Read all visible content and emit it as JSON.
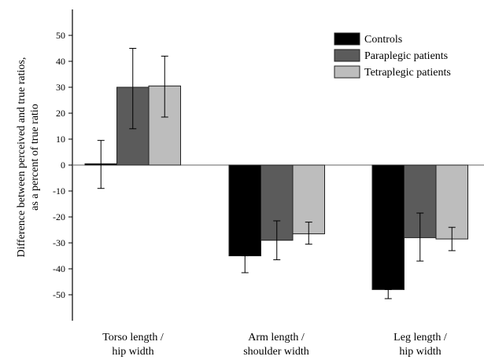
{
  "chart_data": {
    "type": "bar",
    "ylabel_lines": [
      "Difference between perceived and true ratios,",
      "as a percent of true ratio"
    ],
    "ylim": [
      -60,
      60
    ],
    "yticks": [
      50,
      40,
      30,
      20,
      10,
      0,
      -10,
      -20,
      -30,
      -40,
      -50
    ],
    "categories": [
      [
        "Torso length /",
        "hip width"
      ],
      [
        "Arm length /",
        "shoulder width"
      ],
      [
        "Leg length /",
        "hip width"
      ]
    ],
    "series": [
      {
        "name": "Controls",
        "color": "#000000",
        "values": [
          0.5,
          -35,
          -48
        ],
        "err_low": [
          -9,
          -41.5,
          -51.5
        ],
        "err_high": [
          9.5,
          -35,
          -48
        ]
      },
      {
        "name": "Paraplegic patients",
        "color": "#5b5b5b",
        "values": [
          30,
          -29,
          -28
        ],
        "err_low": [
          14,
          -36.5,
          -37
        ],
        "err_high": [
          45,
          -21.5,
          -18.5
        ]
      },
      {
        "name": "Tetraplegic patients",
        "color": "#bdbdbd",
        "values": [
          30.5,
          -26.5,
          -28.5
        ],
        "err_low": [
          18.5,
          -30.5,
          -33
        ],
        "err_high": [
          42,
          -22,
          -24
        ]
      }
    ],
    "legend_position": "top-right",
    "zero_line": true
  }
}
